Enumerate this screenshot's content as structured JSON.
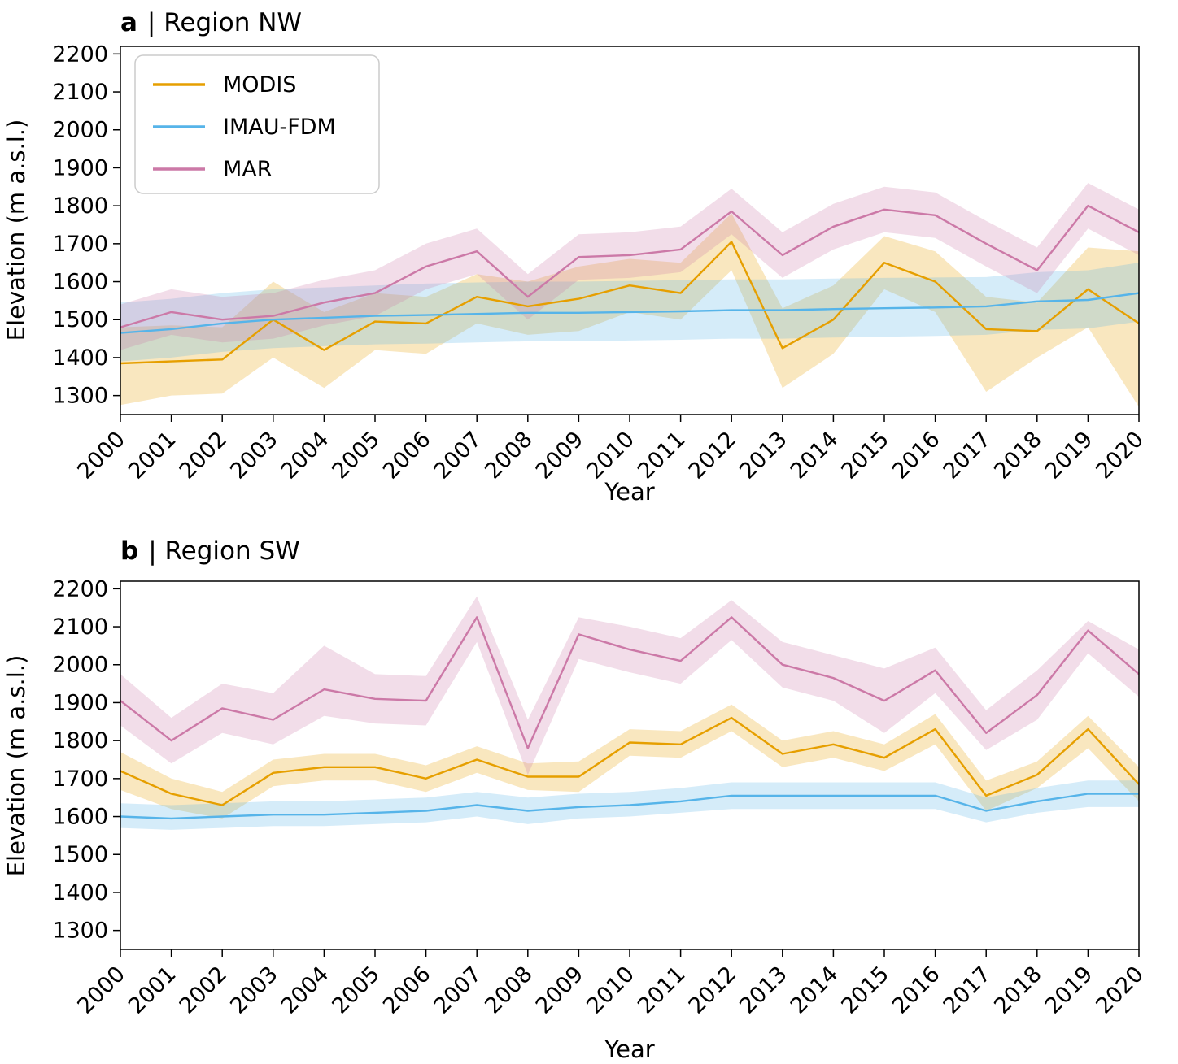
{
  "accent_colors": {
    "modis_orange": "#E69F00",
    "imau_blue": "#56B4E9",
    "mar_pink": "#CC79A7"
  },
  "chart_data": [
    {
      "type": "line",
      "panel_label": "a",
      "title": "| Region NW",
      "full_title": "a | Region NW",
      "xlabel": "Year",
      "ylabel": "Elevation (m a.s.l.)",
      "legend_position": "upper left",
      "grid": false,
      "xlim": [
        2000,
        2020
      ],
      "ylim": [
        1250,
        2220
      ],
      "x": [
        2000,
        2001,
        2002,
        2003,
        2004,
        2005,
        2006,
        2007,
        2008,
        2009,
        2010,
        2011,
        2012,
        2013,
        2014,
        2015,
        2016,
        2017,
        2018,
        2019,
        2020
      ],
      "x_tick_labels": [
        "2000",
        "2001",
        "2002",
        "2003",
        "2004",
        "2005",
        "2006",
        "2007",
        "2008",
        "2009",
        "2010",
        "2011",
        "2012",
        "2013",
        "2014",
        "2015",
        "2016",
        "2017",
        "2018",
        "2019",
        "2020"
      ],
      "y_ticks": [
        1300,
        1400,
        1500,
        1600,
        1700,
        1800,
        1900,
        2000,
        2100,
        2200
      ],
      "series": [
        {
          "name": "MODIS",
          "color": "#E69F00",
          "values": [
            1385,
            1390,
            1395,
            1500,
            1420,
            1495,
            1490,
            1560,
            1535,
            1555,
            1590,
            1570,
            1705,
            1425,
            1500,
            1650,
            1600,
            1475,
            1470,
            1580,
            1490
          ],
          "lower": [
            1275,
            1300,
            1305,
            1400,
            1320,
            1420,
            1410,
            1490,
            1460,
            1470,
            1520,
            1500,
            1630,
            1320,
            1410,
            1580,
            1520,
            1310,
            1400,
            1480,
            1270
          ],
          "upper": [
            1480,
            1485,
            1480,
            1600,
            1520,
            1570,
            1560,
            1620,
            1600,
            1640,
            1660,
            1650,
            1780,
            1530,
            1590,
            1720,
            1680,
            1560,
            1545,
            1690,
            1680
          ]
        },
        {
          "name": "IMAU-FDM",
          "color": "#56B4E9",
          "values": [
            1465,
            1475,
            1490,
            1500,
            1505,
            1510,
            1512,
            1515,
            1518,
            1518,
            1520,
            1522,
            1525,
            1525,
            1528,
            1530,
            1532,
            1535,
            1548,
            1552,
            1570
          ],
          "lower": [
            1390,
            1400,
            1415,
            1425,
            1430,
            1435,
            1437,
            1440,
            1443,
            1443,
            1445,
            1447,
            1450,
            1450,
            1453,
            1455,
            1457,
            1460,
            1473,
            1477,
            1495
          ],
          "upper": [
            1545,
            1555,
            1570,
            1580,
            1585,
            1590,
            1595,
            1598,
            1600,
            1600,
            1602,
            1604,
            1606,
            1606,
            1608,
            1610,
            1611,
            1612,
            1625,
            1630,
            1650
          ]
        },
        {
          "name": "MAR",
          "color": "#CC79A7",
          "values": [
            1480,
            1520,
            1500,
            1510,
            1545,
            1570,
            1640,
            1680,
            1560,
            1665,
            1670,
            1685,
            1785,
            1670,
            1745,
            1790,
            1775,
            1700,
            1630,
            1800,
            1730
          ],
          "lower": [
            1420,
            1460,
            1440,
            1450,
            1485,
            1510,
            1580,
            1620,
            1500,
            1605,
            1610,
            1625,
            1725,
            1610,
            1685,
            1730,
            1715,
            1640,
            1570,
            1740,
            1670
          ],
          "upper": [
            1540,
            1580,
            1560,
            1570,
            1605,
            1630,
            1700,
            1740,
            1620,
            1725,
            1730,
            1745,
            1845,
            1730,
            1805,
            1850,
            1835,
            1760,
            1690,
            1860,
            1790
          ]
        }
      ]
    },
    {
      "type": "line",
      "panel_label": "b",
      "title": "| Region SW",
      "full_title": "b | Region SW",
      "xlabel": "Year",
      "ylabel": "Elevation (m a.s.l.)",
      "legend_position": "none",
      "grid": false,
      "xlim": [
        2000,
        2020
      ],
      "ylim": [
        1250,
        2220
      ],
      "x": [
        2000,
        2001,
        2002,
        2003,
        2004,
        2005,
        2006,
        2007,
        2008,
        2009,
        2010,
        2011,
        2012,
        2013,
        2014,
        2015,
        2016,
        2017,
        2018,
        2019,
        2020
      ],
      "x_tick_labels": [
        "2000",
        "2001",
        "2002",
        "2003",
        "2004",
        "2005",
        "2006",
        "2007",
        "2008",
        "2009",
        "2010",
        "2011",
        "2012",
        "2013",
        "2014",
        "2015",
        "2016",
        "2017",
        "2018",
        "2019",
        "2020"
      ],
      "y_ticks": [
        1300,
        1400,
        1500,
        1600,
        1700,
        1800,
        1900,
        2000,
        2100,
        2200
      ],
      "series": [
        {
          "name": "MODIS",
          "color": "#E69F00",
          "values": [
            1720,
            1660,
            1630,
            1715,
            1730,
            1730,
            1700,
            1750,
            1705,
            1705,
            1795,
            1790,
            1860,
            1765,
            1790,
            1755,
            1830,
            1655,
            1710,
            1830,
            1685
          ],
          "lower": [
            1670,
            1620,
            1595,
            1680,
            1695,
            1695,
            1665,
            1715,
            1670,
            1665,
            1760,
            1755,
            1825,
            1730,
            1755,
            1720,
            1790,
            1615,
            1675,
            1780,
            1640
          ],
          "upper": [
            1770,
            1700,
            1665,
            1750,
            1765,
            1765,
            1735,
            1785,
            1740,
            1745,
            1830,
            1825,
            1895,
            1800,
            1825,
            1790,
            1870,
            1695,
            1745,
            1865,
            1730
          ]
        },
        {
          "name": "IMAU-FDM",
          "color": "#56B4E9",
          "values": [
            1600,
            1595,
            1600,
            1605,
            1605,
            1610,
            1615,
            1630,
            1615,
            1625,
            1630,
            1640,
            1655,
            1655,
            1655,
            1655,
            1655,
            1615,
            1640,
            1660,
            1660
          ],
          "lower": [
            1570,
            1565,
            1570,
            1575,
            1575,
            1580,
            1585,
            1600,
            1580,
            1595,
            1600,
            1610,
            1620,
            1620,
            1620,
            1620,
            1620,
            1585,
            1610,
            1625,
            1625
          ],
          "upper": [
            1635,
            1630,
            1635,
            1640,
            1640,
            1645,
            1650,
            1665,
            1650,
            1660,
            1665,
            1675,
            1690,
            1690,
            1690,
            1690,
            1690,
            1650,
            1675,
            1695,
            1695
          ]
        },
        {
          "name": "MAR",
          "color": "#CC79A7",
          "values": [
            1905,
            1800,
            1885,
            1855,
            1935,
            1910,
            1905,
            2125,
            1780,
            2080,
            2040,
            2010,
            2125,
            2000,
            1965,
            1905,
            1985,
            1820,
            1920,
            2090,
            1975
          ],
          "lower": [
            1840,
            1740,
            1820,
            1790,
            1865,
            1845,
            1840,
            2060,
            1710,
            2015,
            1980,
            1950,
            2065,
            1940,
            1905,
            1820,
            1925,
            1775,
            1855,
            2030,
            1915
          ],
          "upper": [
            1975,
            1860,
            1950,
            1925,
            2050,
            1975,
            1970,
            2180,
            1855,
            2125,
            2100,
            2070,
            2170,
            2060,
            2025,
            1990,
            2045,
            1880,
            1985,
            2115,
            2040
          ]
        }
      ]
    }
  ]
}
